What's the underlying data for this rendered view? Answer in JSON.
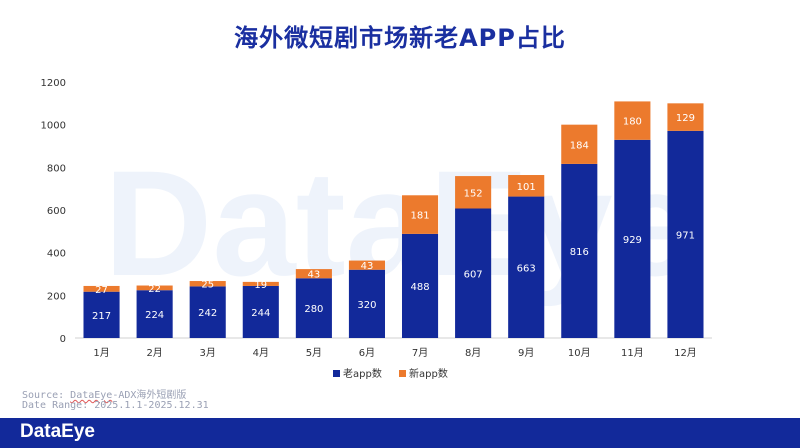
{
  "title": "海外微短剧市场新老APP占比",
  "watermark": "DataEye",
  "source": {
    "label": "Source: ",
    "brand": "DataEye",
    "rest": "-ADX海外短剧版",
    "date_range": "Date Range: 2025.1.1-2025.12.31"
  },
  "footer": {
    "logo": "DataEye"
  },
  "colors": {
    "old": "#12299a",
    "new": "#ec7a2d",
    "title": "#1a2fa0"
  },
  "chart_data": {
    "type": "bar",
    "stacked": true,
    "title": "海外微短剧市场新老APP占比",
    "categories": [
      "1月",
      "2月",
      "3月",
      "4月",
      "5月",
      "6月",
      "7月",
      "8月",
      "9月",
      "10月",
      "11月",
      "12月"
    ],
    "series": [
      {
        "name": "老app数",
        "values": [
          217,
          224,
          242,
          244,
          280,
          320,
          488,
          607,
          663,
          816,
          929,
          971
        ]
      },
      {
        "name": "新app数",
        "values": [
          27,
          22,
          25,
          19,
          43,
          43,
          181,
          152,
          101,
          184,
          180,
          129
        ]
      }
    ],
    "ylim": [
      0,
      1200
    ],
    "yticks": [
      0,
      200,
      400,
      600,
      800,
      1000,
      1200
    ],
    "xlabel": "",
    "ylabel": "",
    "legend": "bottom-center",
    "grid": false
  }
}
